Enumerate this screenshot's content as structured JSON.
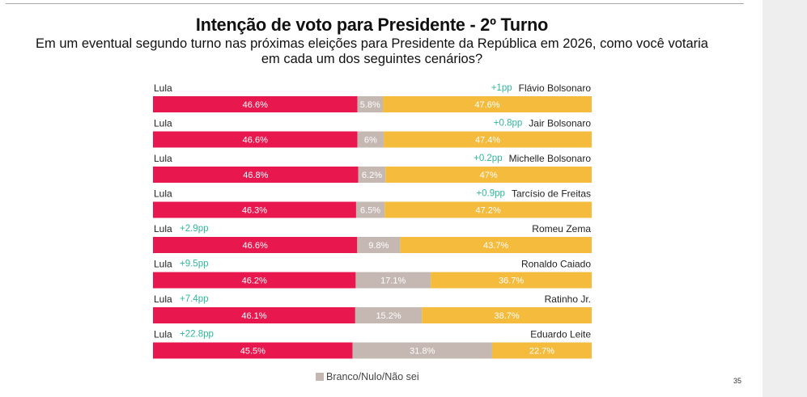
{
  "header": {
    "title": "Intenção de voto para Presidente - 2º Turno",
    "subtitle_line1": "Em um eventual segundo turno nas próximas eleições para Presidente da República em 2026, como você votaria",
    "subtitle_line2": "em cada um dos seguintes cenários?"
  },
  "colors": {
    "left_bar": "#e8184f",
    "middle_bar": "#c5b8b2",
    "right_bar": "#f5bb3c",
    "change_text": "#2fb89a"
  },
  "chart_data": {
    "type": "bar",
    "stacked": true,
    "orientation": "horizontal",
    "segments": [
      "left",
      "Branco/Nulo/Não sei",
      "right"
    ],
    "rows": [
      {
        "left_label": "Lula",
        "left_change": "",
        "right_label": "Flávio Bolsonaro",
        "right_change": "+1pp",
        "left_value": 46.6,
        "middle_value": 5.8,
        "right_value": 47.6,
        "left_text": "46.6%",
        "middle_text": "5.8%",
        "right_text": "47.6%"
      },
      {
        "left_label": "Lula",
        "left_change": "",
        "right_label": "Jair Bolsonaro",
        "right_change": "+0.8pp",
        "left_value": 46.6,
        "middle_value": 6,
        "right_value": 47.4,
        "left_text": "46.6%",
        "middle_text": "6%",
        "right_text": "47.4%"
      },
      {
        "left_label": "Lula",
        "left_change": "",
        "right_label": "Michelle Bolsonaro",
        "right_change": "+0.2pp",
        "left_value": 46.8,
        "middle_value": 6.2,
        "right_value": 47,
        "left_text": "46.8%",
        "middle_text": "6.2%",
        "right_text": "47%"
      },
      {
        "left_label": "Lula",
        "left_change": "",
        "right_label": "Tarcísio de Freitas",
        "right_change": "+0.9pp",
        "left_value": 46.3,
        "middle_value": 6.5,
        "right_value": 47.2,
        "left_text": "46.3%",
        "middle_text": "6.5%",
        "right_text": "47.2%"
      },
      {
        "left_label": "Lula",
        "left_change": "+2.9pp",
        "right_label": "Romeu Zema",
        "right_change": "",
        "left_value": 46.6,
        "middle_value": 9.8,
        "right_value": 43.7,
        "left_text": "46.6%",
        "middle_text": "9.8%",
        "right_text": "43.7%"
      },
      {
        "left_label": "Lula",
        "left_change": "+9.5pp",
        "right_label": "Ronaldo Caiado",
        "right_change": "",
        "left_value": 46.2,
        "middle_value": 17.1,
        "right_value": 36.7,
        "left_text": "46.2%",
        "middle_text": "17.1%",
        "right_text": "36.7%"
      },
      {
        "left_label": "Lula",
        "left_change": "+7.4pp",
        "right_label": "Ratinho Jr.",
        "right_change": "",
        "left_value": 46.1,
        "middle_value": 15.2,
        "right_value": 38.7,
        "left_text": "46.1%",
        "middle_text": "15.2%",
        "right_text": "38.7%"
      },
      {
        "left_label": "Lula",
        "left_change": "+22.8pp",
        "right_label": "Eduardo Leite",
        "right_change": "",
        "left_value": 45.5,
        "middle_value": 31.8,
        "right_value": 22.7,
        "left_text": "45.5%",
        "middle_text": "31.8%",
        "right_text": "22.7%"
      }
    ],
    "legend": [
      {
        "name": "Branco/Nulo/Não sei",
        "color": "#c5b8b2"
      }
    ]
  },
  "footer": {
    "page_number": "35"
  }
}
